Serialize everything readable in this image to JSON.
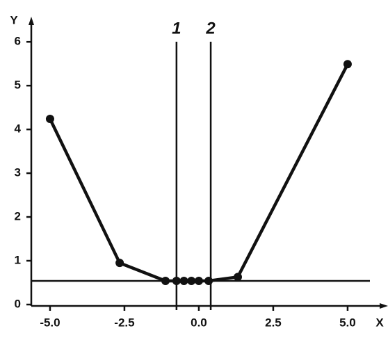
{
  "chart_data": {
    "type": "line",
    "x_label": "X",
    "y_label": "Y",
    "x": [
      -5.0,
      -2.66,
      -1.12,
      -0.75,
      -0.5,
      -0.25,
      0.0,
      0.33,
      1.31,
      5.0
    ],
    "series": [
      {
        "color": "#111111",
        "values": [
          4.24,
          0.95,
          0.54,
          0.54,
          0.54,
          0.54,
          0.54,
          0.54,
          0.63,
          5.49
        ]
      }
    ],
    "xlim": [
      -5.63,
      6.17
    ],
    "ylim": [
      0,
      6.4
    ],
    "xticks": [
      {
        "value": -5.0,
        "label": "-5.0"
      },
      {
        "value": -2.5,
        "label": "-2.5"
      },
      {
        "value": 0.0,
        "label": "0.0"
      },
      {
        "value": 2.5,
        "label": "2.5"
      },
      {
        "value": 5.0,
        "label": "5.0"
      }
    ],
    "yticks": [
      0,
      1,
      2,
      3,
      4,
      5,
      6
    ],
    "hline": 0.54,
    "vlines": [
      {
        "value": -0.75,
        "label": "1"
      },
      {
        "value": 0.4,
        "label": "2"
      }
    ]
  }
}
